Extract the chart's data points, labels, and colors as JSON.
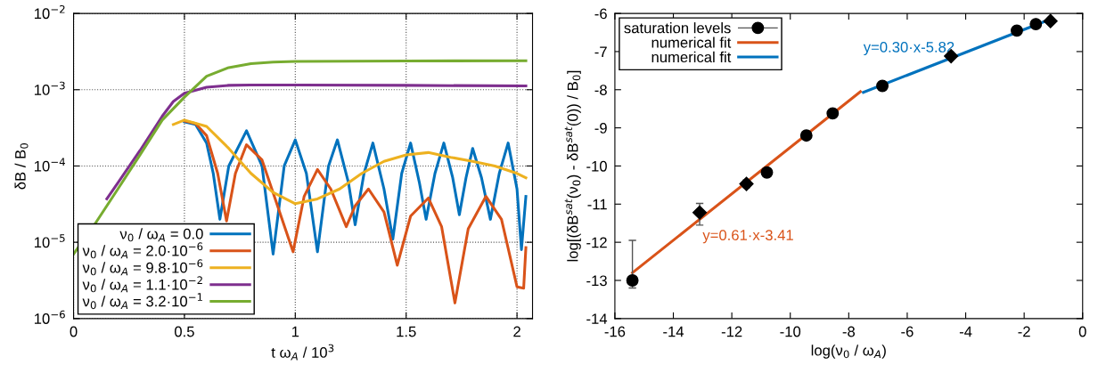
{
  "chart_data": [
    {
      "type": "line",
      "xlabel": "t ω$_{A}$ / 10$^{3}$",
      "ylabel": "δB / B$_{0}$",
      "log": true,
      "grid": true,
      "legend": "bottom left",
      "marker": "none",
      "line_style": "solid",
      "xlim": [
        0,
        2.07
      ],
      "xticks": [
        0,
        0.5,
        1,
        1.5,
        2
      ],
      "ylim": [
        1e-06,
        0.01
      ],
      "yticks": [
        {
          "value": 1e-06,
          "label": "10$^{−6}$"
        },
        {
          "value": 1e-05,
          "label": "10$^{−5}$"
        },
        {
          "value": 0.0001,
          "label": "10$^{−4}$"
        },
        {
          "value": 0.001,
          "label": "10$^{−3}$"
        },
        {
          "value": 0.01,
          "label": "10$^{−2}$"
        }
      ],
      "series": [
        {
          "name": "ν$_{0}$ / ω$_{A}$ = 0.0",
          "color": "#0072bd",
          "x": [
            0.5,
            0.55,
            0.6,
            0.63,
            0.66,
            0.7,
            0.78,
            0.85,
            0.9,
            0.95,
            1.0,
            1.05,
            1.1,
            1.15,
            1.19,
            1.24,
            1.27,
            1.31,
            1.35,
            1.4,
            1.44,
            1.48,
            1.52,
            1.56,
            1.59,
            1.63,
            1.67,
            1.71,
            1.74,
            1.77,
            1.8,
            1.84,
            1.88,
            1.92,
            1.96,
            2.0,
            2.02,
            2.04
          ],
          "values": [
            0.00038,
            0.00035,
            0.0002,
            8e-05,
            2e-05,
            0.0001,
            0.00029,
            0.0001,
            7e-06,
            0.0001,
            0.00022,
            8e-05,
            7.5e-06,
            0.0001,
            0.00022,
            6e-05,
            1.7e-05,
            8e-05,
            0.0002,
            5e-05,
            1.1e-05,
            8e-05,
            0.0002,
            6e-05,
            2e-05,
            8e-05,
            0.0002,
            7e-05,
            2.3e-05,
            7e-05,
            0.00017,
            7e-05,
            2e-05,
            8e-05,
            0.0002,
            5e-05,
            8e-06,
            4e-05
          ]
        },
        {
          "name": "ν$_{0}$ / ω$_{A}$ = 2.0·10$^{−6}$",
          "color": "#d95319",
          "x": [
            0.5,
            0.55,
            0.6,
            0.65,
            0.69,
            0.73,
            0.78,
            0.85,
            0.92,
            0.99,
            1.04,
            1.1,
            1.16,
            1.23,
            1.27,
            1.33,
            1.4,
            1.46,
            1.52,
            1.6,
            1.66,
            1.72,
            1.78,
            1.86,
            1.93,
            2.0,
            2.03,
            2.04
          ],
          "values": [
            0.00039,
            0.00036,
            0.00025,
            8e-05,
            1.9e-05,
            8e-05,
            0.00019,
            0.00012,
            3e-05,
            7.5e-06,
            4e-05,
            9e-05,
            5e-05,
            1.6e-05,
            3e-05,
            5e-05,
            2.5e-05,
            5e-06,
            2.2e-05,
            3.8e-05,
            1.6e-05,
            1.6e-06,
            1.5e-05,
            4e-05,
            2e-05,
            2.6e-06,
            2.5e-06,
            8.5e-06
          ]
        },
        {
          "name": "ν$_{0}$ / ω$_{A}$ = 9.8·10$^{−6}$",
          "color": "#edb120",
          "x": [
            0.45,
            0.5,
            0.6,
            0.7,
            0.8,
            0.9,
            1.0,
            1.1,
            1.2,
            1.3,
            1.4,
            1.5,
            1.6,
            1.7,
            1.8,
            1.9,
            2.0,
            2.04
          ],
          "values": [
            0.00035,
            0.0004,
            0.00033,
            0.00017,
            8e-05,
            4.5e-05,
            3.2e-05,
            3.7e-05,
            5e-05,
            8e-05,
            0.000115,
            0.00014,
            0.00015,
            0.00013,
            0.000115,
            0.0001,
            8e-05,
            7e-05
          ]
        },
        {
          "name": "ν$_{0}$ / ω$_{A}$ = 1.1·10$^{−2}$",
          "color": "#7e2f8e",
          "x": [
            0.15,
            0.2,
            0.3,
            0.4,
            0.45,
            0.5,
            0.6,
            0.7,
            0.8,
            1.0,
            1.5,
            2.04
          ],
          "values": [
            3.7e-05,
            6e-05,
            0.00016,
            0.00045,
            0.0007,
            0.0009,
            0.00108,
            0.00114,
            0.00115,
            0.00115,
            0.00114,
            0.00112
          ]
        },
        {
          "name": "ν$_{0}$ / ω$_{A}$ = 3.2·10$^{−1}$",
          "color": "#77ac30",
          "x": [
            0,
            0.1,
            0.2,
            0.3,
            0.4,
            0.5,
            0.6,
            0.7,
            0.8,
            0.9,
            1.0,
            1.5,
            2.04
          ],
          "values": [
            7e-06,
            1.8e-05,
            5e-05,
            0.00014,
            0.0004,
            0.0008,
            0.0015,
            0.00195,
            0.0022,
            0.0023,
            0.00235,
            0.00238,
            0.0024
          ]
        }
      ]
    },
    {
      "type": "scatter",
      "xlabel": "log(ν$_{0}$ / ω$_{A}$)",
      "ylabel": "log[(δB$^{sat}$(ν$_{0}$) - δB$^{sat}$(0)) / B$_{0}$]",
      "legend": "top left",
      "xlim": [
        -16,
        0
      ],
      "xticks": [
        -16,
        -14,
        -12,
        -10,
        -8,
        -6,
        -4,
        -2,
        0
      ],
      "ylim": [
        -14,
        -6
      ],
      "yticks": [
        -14,
        -13,
        -12,
        -11,
        -10,
        -9,
        -8,
        -7,
        -6
      ],
      "annotations": [
        {
          "text": "y=0.61·x-3.41",
          "x": -13,
          "y": -11.34
        },
        {
          "text": "y=0.30·x-5.82",
          "x": -7.5,
          "y": -8.07
        }
      ],
      "series": [
        {
          "name": "saturation levels",
          "color": "#000000",
          "marker": "circle",
          "x": [
            -15.4,
            -10.8,
            -9.45,
            -8.55,
            -6.85,
            -2.25,
            -1.6
          ],
          "values": [
            -13,
            -10.17,
            -9.2,
            -8.62,
            -7.9,
            -6.45,
            -6.28
          ],
          "errors": [
            [
              -13.2,
              -11.95
            ],
            null,
            null,
            null,
            null,
            null,
            null
          ]
        },
        {
          "color": "#000000",
          "marker": "diamond",
          "x": [
            -13.1,
            -11.5,
            -4.5,
            -1.1
          ],
          "values": [
            -11.22,
            -10.47,
            -7.12,
            -6.2
          ],
          "errors": [
            [
              -11.55,
              -10.98
            ],
            [
              -10.57,
              -10.37
            ],
            null,
            null
          ]
        },
        {
          "type": "line",
          "name": "numerical fit",
          "color": "#d95319",
          "x": [
            -15.4,
            -7.6
          ],
          "values": [
            -12.8,
            -8.05
          ]
        },
        {
          "type": "line",
          "name": "numerical fit",
          "color": "#0072bd",
          "x": [
            -7.5,
            -1.1
          ],
          "values": [
            -8.07,
            -6.15
          ]
        }
      ]
    }
  ]
}
